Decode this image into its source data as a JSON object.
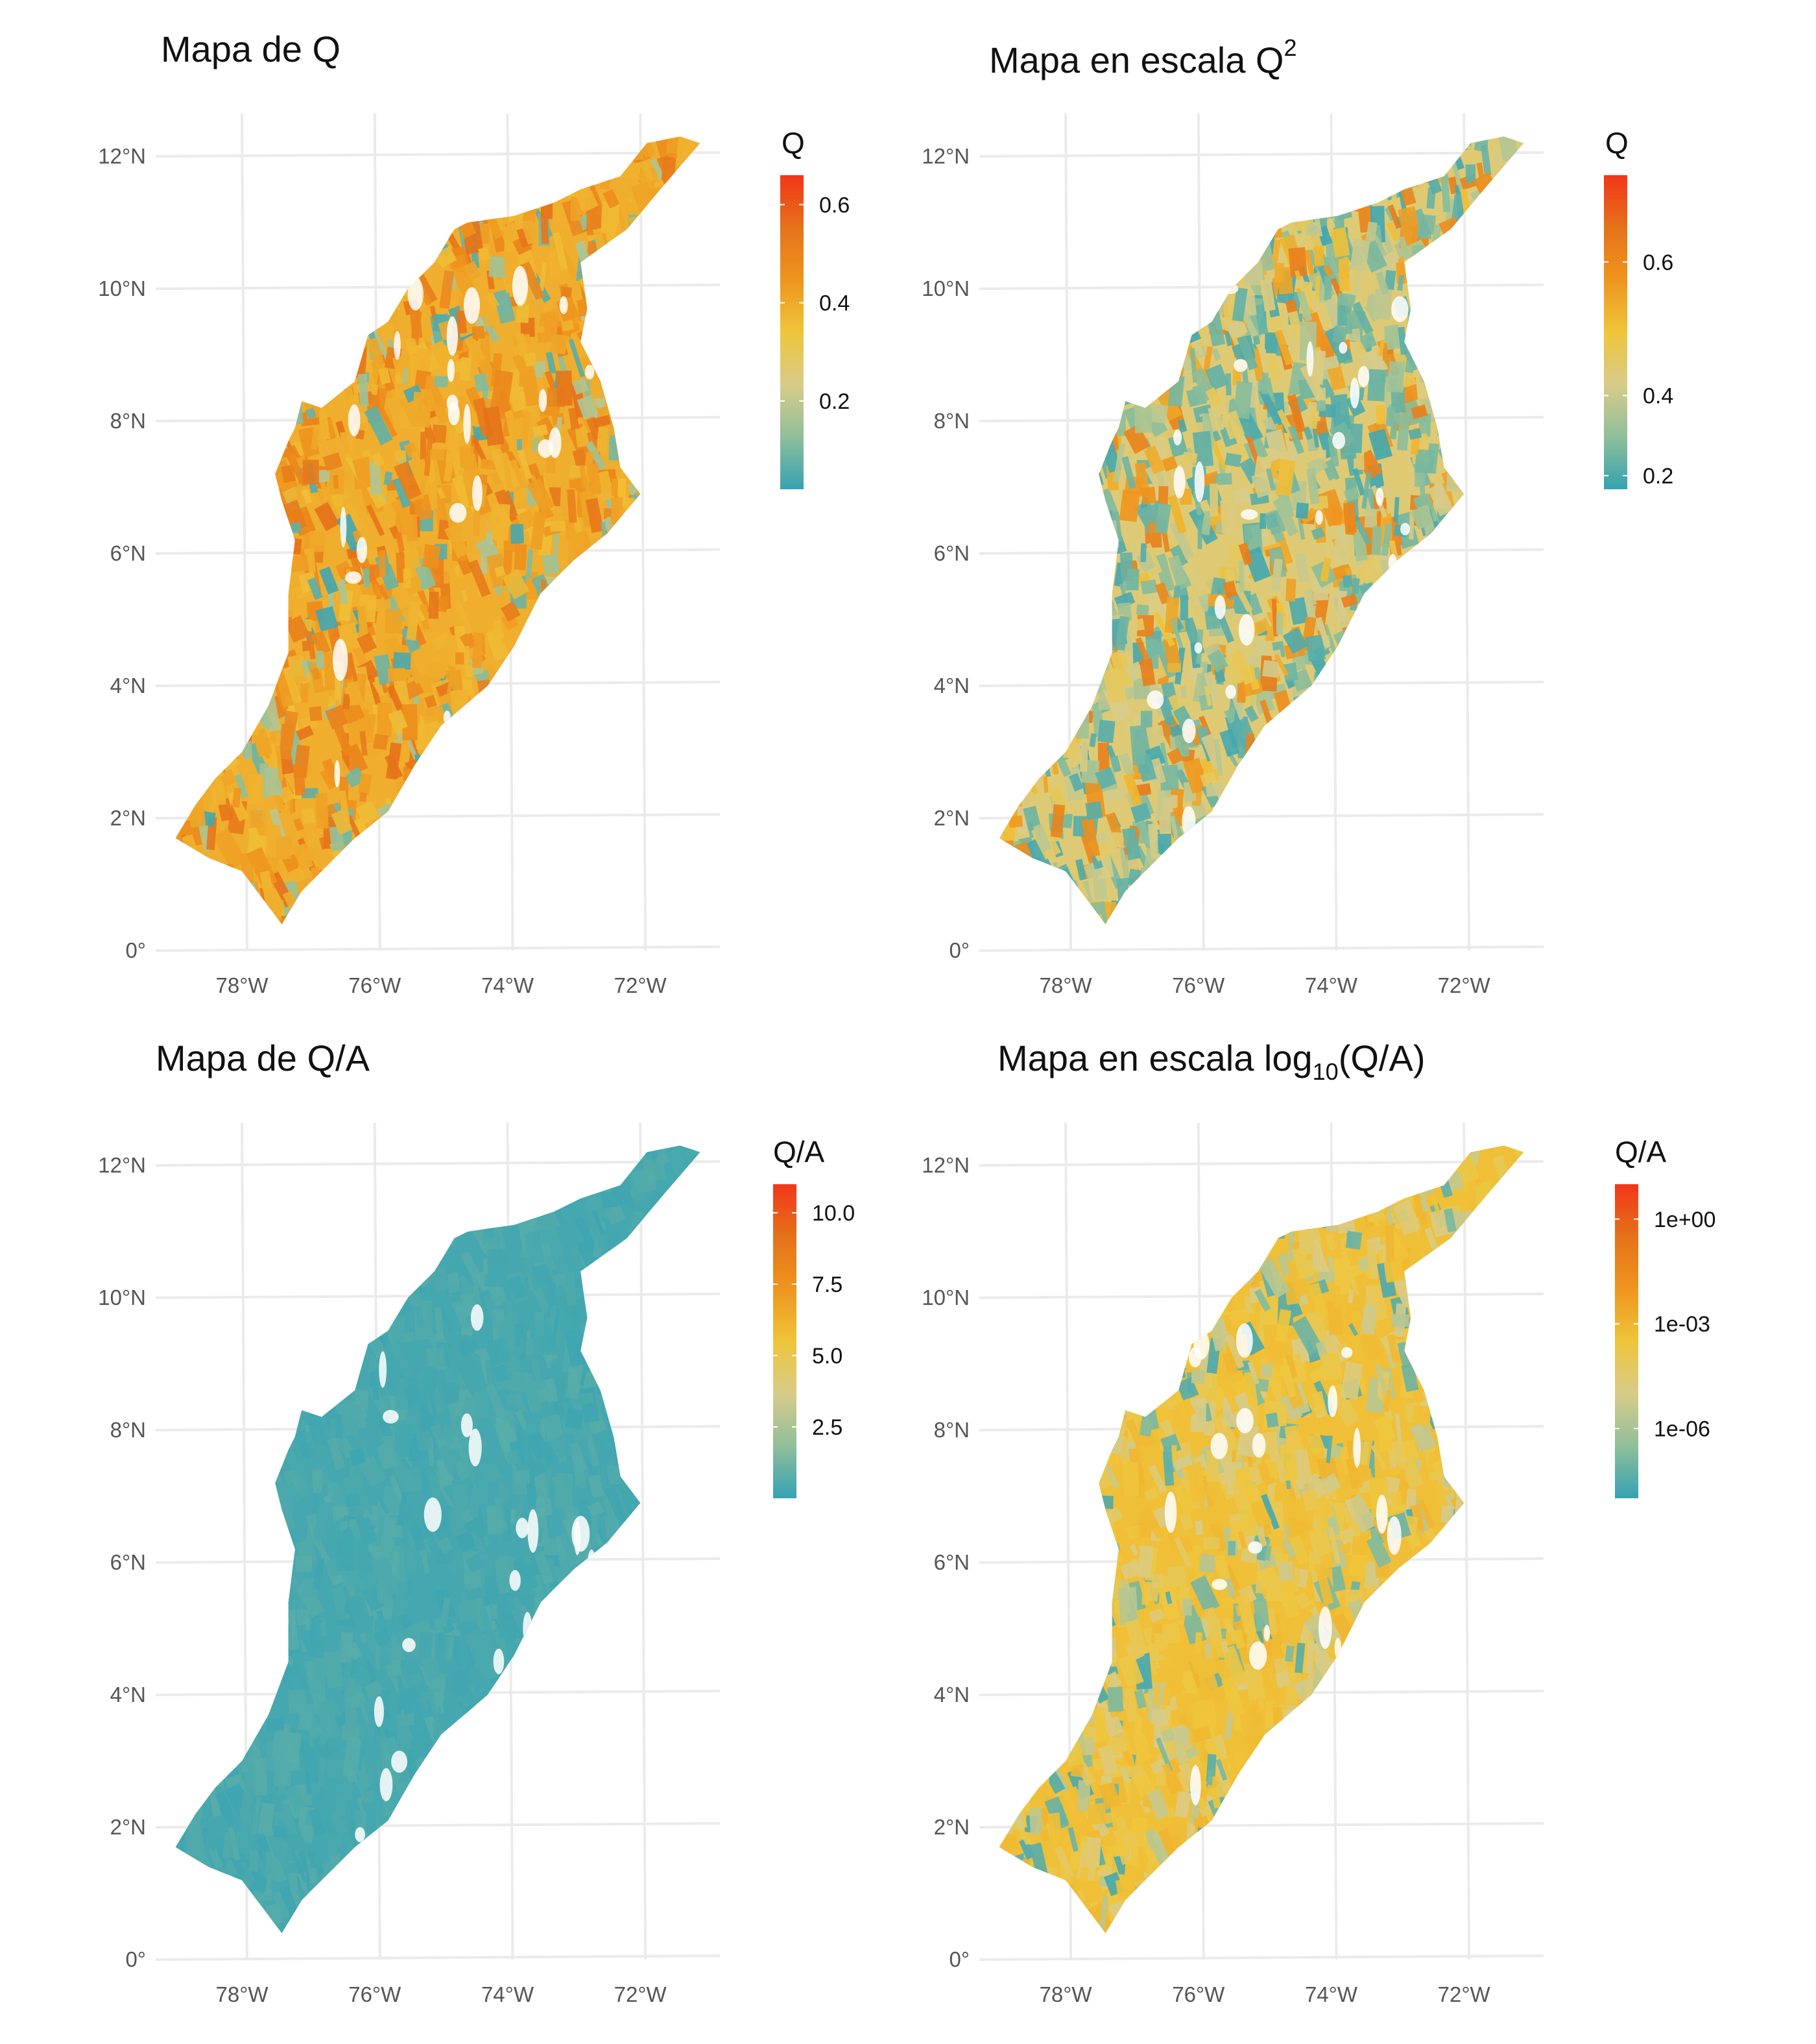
{
  "panels": [
    {
      "id": "q",
      "title_main": "Mapa de Q",
      "title_sup": "",
      "title_sub": "",
      "title_tail": "",
      "legend_title": "Q",
      "legend_ticks": [
        {
          "value": 0.2,
          "label": "0.2"
        },
        {
          "value": 0.4,
          "label": "0.4"
        },
        {
          "value": 0.6,
          "label": "0.6"
        }
      ],
      "legend_range": [
        0.02,
        0.66
      ],
      "legend_scale": "linear",
      "dominant_tone": 0.58
    },
    {
      "id": "q2",
      "title_main": "Mapa en escala Q",
      "title_sup": "2",
      "title_sub": "",
      "title_tail": "",
      "legend_title": "Q",
      "legend_ticks": [
        {
          "value": 0.2,
          "label": "0.2"
        },
        {
          "value": 0.4,
          "label": "0.4"
        },
        {
          "value": 0.6,
          "label": "0.6"
        }
      ],
      "legend_range": [
        0.14,
        0.7
      ],
      "legend_scale": "square",
      "dominant_tone": 0.38
    },
    {
      "id": "qa",
      "title_main": "Mapa de Q/A",
      "title_sup": "",
      "title_sub": "",
      "title_tail": "",
      "legend_title": "Q/A",
      "legend_ticks": [
        {
          "value": 2.5,
          "label": "2.5"
        },
        {
          "value": 5.0,
          "label": "5.0"
        },
        {
          "value": 7.5,
          "label": "7.5"
        },
        {
          "value": 10.0,
          "label": "10.0"
        }
      ],
      "legend_range": [
        0.0,
        11.0
      ],
      "legend_scale": "linear",
      "dominant_tone": 0.03
    },
    {
      "id": "logqa",
      "title_main": "Mapa en escala log",
      "title_sup": "",
      "title_sub": "10",
      "title_tail": "(Q/A)",
      "legend_title": "Q/A",
      "legend_ticks": [
        {
          "value": -6,
          "label": "1e-06"
        },
        {
          "value": -3,
          "label": "1e-03"
        },
        {
          "value": 0,
          "label": "1e+00"
        }
      ],
      "legend_range": [
        -8.0,
        1.0
      ],
      "legend_scale": "log10",
      "dominant_tone": 0.52
    }
  ],
  "lat_ticks": [
    {
      "value": 0,
      "label": "0°"
    },
    {
      "value": 2,
      "label": "2°N"
    },
    {
      "value": 4,
      "label": "4°N"
    },
    {
      "value": 6,
      "label": "6°N"
    },
    {
      "value": 8,
      "label": "8°N"
    },
    {
      "value": 10,
      "label": "10°N"
    },
    {
      "value": 12,
      "label": "12°N"
    }
  ],
  "lon_ticks": [
    {
      "value": -78,
      "label": "78°W"
    },
    {
      "value": -76,
      "label": "76°W"
    },
    {
      "value": -74,
      "label": "74°W"
    },
    {
      "value": -72,
      "label": "72°W"
    }
  ],
  "map_extent": {
    "lon": [
      -79.3,
      -70.8
    ],
    "lat": [
      0.0,
      12.5
    ]
  },
  "region_outline_lonlat": [
    [
      -71.1,
      12.2
    ],
    [
      -71.4,
      12.3
    ],
    [
      -71.9,
      12.2
    ],
    [
      -72.3,
      11.7
    ],
    [
      -72.9,
      11.5
    ],
    [
      -73.3,
      11.3
    ],
    [
      -73.9,
      11.1
    ],
    [
      -74.6,
      11.0
    ],
    [
      -74.8,
      10.9
    ],
    [
      -75.1,
      10.4
    ],
    [
      -75.5,
      10.0
    ],
    [
      -75.8,
      9.5
    ],
    [
      -76.1,
      9.3
    ],
    [
      -76.3,
      8.6
    ],
    [
      -76.8,
      8.2
    ],
    [
      -77.1,
      8.3
    ],
    [
      -77.2,
      7.9
    ],
    [
      -77.3,
      7.7
    ],
    [
      -77.5,
      7.2
    ],
    [
      -77.4,
      6.8
    ],
    [
      -77.2,
      6.2
    ],
    [
      -77.3,
      5.4
    ],
    [
      -77.3,
      4.5
    ],
    [
      -77.6,
      3.7
    ],
    [
      -78.0,
      3.0
    ],
    [
      -78.4,
      2.6
    ],
    [
      -78.7,
      2.2
    ],
    [
      -79.0,
      1.7
    ],
    [
      -78.5,
      1.4
    ],
    [
      -78.0,
      1.2
    ],
    [
      -77.7,
      0.8
    ],
    [
      -77.4,
      0.4
    ],
    [
      -77.1,
      0.9
    ],
    [
      -76.9,
      1.1
    ],
    [
      -76.3,
      1.7
    ],
    [
      -75.8,
      2.1
    ],
    [
      -75.4,
      2.8
    ],
    [
      -75.0,
      3.4
    ],
    [
      -74.3,
      4.0
    ],
    [
      -73.9,
      4.6
    ],
    [
      -73.5,
      5.4
    ],
    [
      -73.0,
      5.9
    ],
    [
      -72.5,
      6.3
    ],
    [
      -72.0,
      6.9
    ],
    [
      -72.3,
      7.3
    ],
    [
      -72.4,
      7.9
    ],
    [
      -72.6,
      8.6
    ],
    [
      -72.9,
      9.2
    ],
    [
      -72.8,
      9.7
    ],
    [
      -72.9,
      10.4
    ],
    [
      -72.2,
      10.9
    ],
    [
      -71.7,
      11.5
    ],
    [
      -71.1,
      12.2
    ]
  ],
  "colors": {
    "ramp": [
      "#35a2b3",
      "#8fbf9a",
      "#d8cc8a",
      "#efc53a",
      "#ee951e",
      "#e5721a",
      "#f2361a"
    ],
    "grid": "#ebebeb",
    "tick_text": "#555555",
    "title_text": "#111111",
    "background": "#ffffff"
  }
}
